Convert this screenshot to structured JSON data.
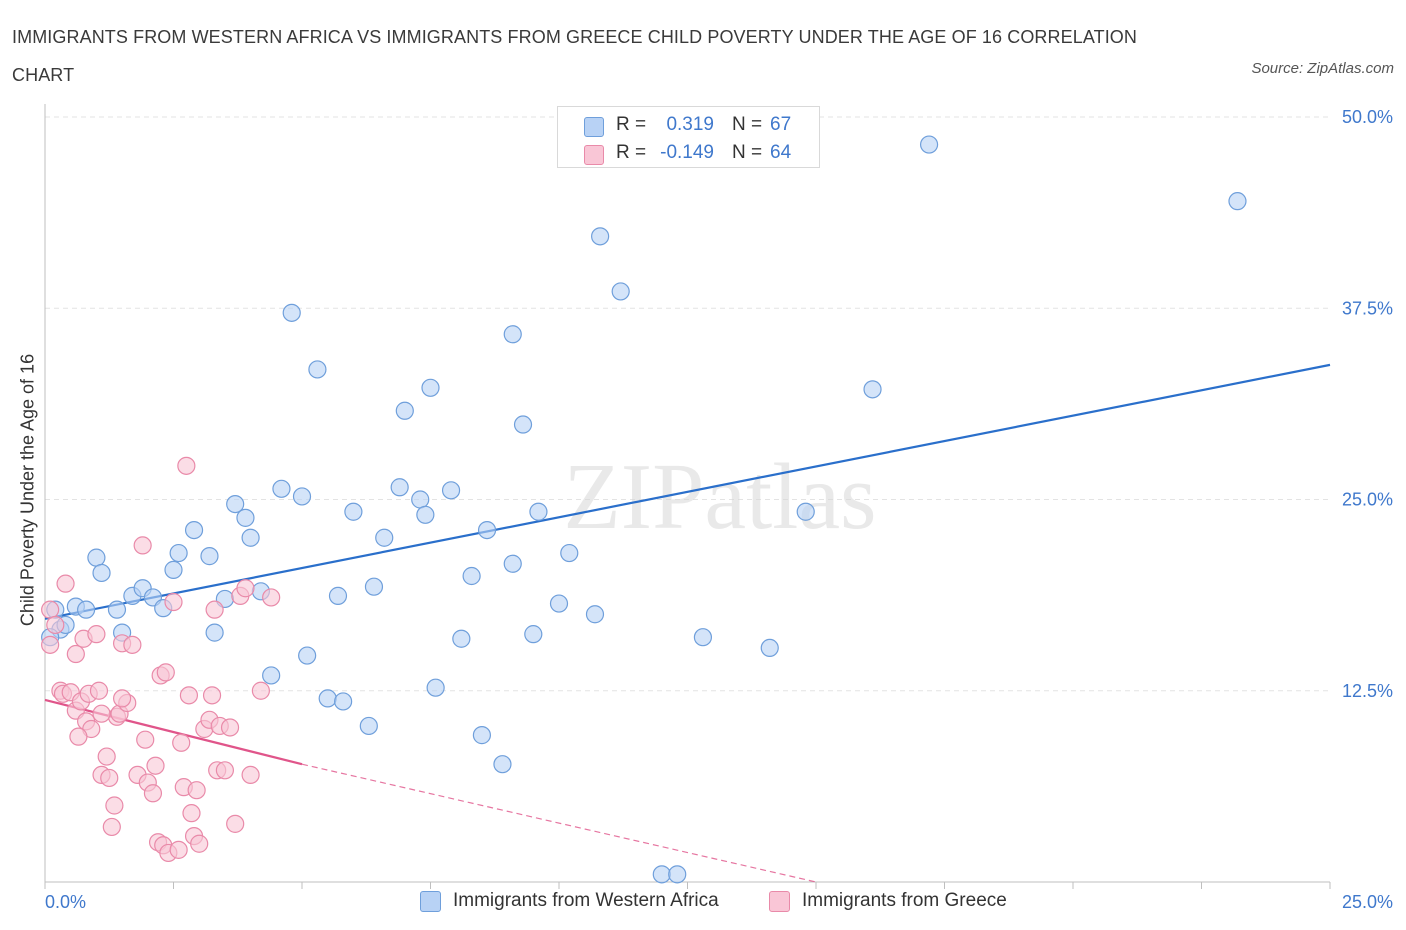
{
  "title": "IMMIGRANTS FROM WESTERN AFRICA VS IMMIGRANTS FROM GREECE CHILD POVERTY UNDER THE AGE OF 16 CORRELATION CHART",
  "source": "Source: ZipAtlas.com",
  "watermark": "ZIPatlas",
  "colors": {
    "blue_fill": "#b8d2f5",
    "blue_stroke": "#6f9fdb",
    "blue_line": "#2a6fcb",
    "pink_fill": "#f9c6d6",
    "pink_stroke": "#e98aa9",
    "pink_line": "#e0558a",
    "axis_text": "#3f78cc",
    "grid": "#e3e3e3"
  },
  "legend": {
    "r_label": "R =",
    "n_label": "N =",
    "series1": {
      "r": "0.319",
      "n": "67"
    },
    "series2": {
      "r": "-0.149",
      "n": "64"
    }
  },
  "chart_data": {
    "type": "scatter",
    "ylabel": "Child Poverty Under the Age of 16",
    "xlabel": "",
    "xlim": [
      0,
      25
    ],
    "ylim": [
      0,
      50
    ],
    "x_tick_labels": [
      "0.0%",
      "25.0%"
    ],
    "y_tick_labels": [
      "12.5%",
      "25.0%",
      "37.5%",
      "50.0%"
    ],
    "y_ticks": [
      12.5,
      25.0,
      37.5,
      50.0
    ],
    "grid": true,
    "legend_position": "top-center",
    "series": [
      {
        "name": "Immigrants from Western Africa",
        "color": "#b8d2f5",
        "trend": {
          "x": [
            0,
            25
          ],
          "y": [
            17.2,
            33.8
          ]
        },
        "points": [
          [
            0.2,
            17.8
          ],
          [
            0.3,
            16.5
          ],
          [
            0.4,
            16.8
          ],
          [
            0.6,
            18.0
          ],
          [
            0.8,
            17.8
          ],
          [
            1.0,
            21.2
          ],
          [
            1.1,
            20.2
          ],
          [
            1.4,
            17.8
          ],
          [
            1.5,
            16.3
          ],
          [
            1.7,
            18.7
          ],
          [
            1.9,
            19.2
          ],
          [
            2.1,
            18.6
          ],
          [
            2.3,
            17.9
          ],
          [
            2.5,
            20.4
          ],
          [
            2.6,
            21.5
          ],
          [
            2.9,
            23.0
          ],
          [
            3.2,
            21.3
          ],
          [
            3.3,
            16.3
          ],
          [
            3.5,
            18.5
          ],
          [
            3.7,
            24.7
          ],
          [
            3.9,
            23.8
          ],
          [
            4.0,
            22.5
          ],
          [
            4.2,
            19.0
          ],
          [
            4.4,
            13.5
          ],
          [
            4.6,
            25.7
          ],
          [
            4.8,
            37.2
          ],
          [
            5.0,
            25.2
          ],
          [
            5.1,
            14.8
          ],
          [
            5.3,
            33.5
          ],
          [
            5.5,
            12.0
          ],
          [
            5.7,
            18.7
          ],
          [
            5.8,
            11.8
          ],
          [
            6.0,
            24.2
          ],
          [
            6.3,
            10.2
          ],
          [
            6.4,
            19.3
          ],
          [
            6.6,
            22.5
          ],
          [
            6.9,
            25.8
          ],
          [
            7.0,
            30.8
          ],
          [
            7.3,
            25.0
          ],
          [
            7.4,
            24.0
          ],
          [
            7.5,
            32.3
          ],
          [
            7.6,
            12.7
          ],
          [
            7.9,
            25.6
          ],
          [
            8.1,
            15.9
          ],
          [
            8.3,
            20.0
          ],
          [
            8.5,
            9.6
          ],
          [
            8.6,
            23.0
          ],
          [
            8.9,
            7.7
          ],
          [
            9.1,
            20.8
          ],
          [
            9.1,
            35.8
          ],
          [
            9.3,
            29.9
          ],
          [
            9.5,
            16.2
          ],
          [
            9.6,
            24.2
          ],
          [
            10.0,
            18.2
          ],
          [
            10.2,
            21.5
          ],
          [
            10.7,
            17.5
          ],
          [
            10.8,
            42.2
          ],
          [
            11.2,
            38.6
          ],
          [
            12.0,
            0.5
          ],
          [
            12.3,
            0.5
          ],
          [
            12.8,
            16.0
          ],
          [
            14.1,
            15.3
          ],
          [
            14.8,
            24.2
          ],
          [
            16.1,
            32.2
          ],
          [
            17.2,
            48.2
          ],
          [
            23.2,
            44.5
          ],
          [
            0.1,
            16.0
          ]
        ]
      },
      {
        "name": "Immigrants from Greece",
        "color": "#f9c6d6",
        "trend": {
          "x": [
            0,
            5.0
          ],
          "y": [
            11.9,
            7.7
          ]
        },
        "trend_extension": {
          "x": [
            5.0,
            15.0
          ],
          "y": [
            7.7,
            0
          ]
        },
        "points": [
          [
            0.1,
            17.8
          ],
          [
            0.1,
            15.5
          ],
          [
            0.2,
            16.8
          ],
          [
            0.3,
            12.5
          ],
          [
            0.35,
            12.3
          ],
          [
            0.4,
            19.5
          ],
          [
            0.5,
            12.4
          ],
          [
            0.6,
            14.9
          ],
          [
            0.6,
            11.2
          ],
          [
            0.7,
            11.8
          ],
          [
            0.75,
            15.9
          ],
          [
            0.8,
            10.5
          ],
          [
            0.85,
            12.3
          ],
          [
            0.9,
            10.0
          ],
          [
            1.0,
            16.2
          ],
          [
            1.05,
            12.5
          ],
          [
            1.1,
            7.0
          ],
          [
            1.2,
            8.2
          ],
          [
            1.25,
            6.8
          ],
          [
            1.3,
            3.6
          ],
          [
            1.35,
            5.0
          ],
          [
            1.4,
            10.8
          ],
          [
            1.45,
            11.0
          ],
          [
            1.5,
            15.6
          ],
          [
            1.6,
            11.7
          ],
          [
            1.7,
            15.5
          ],
          [
            1.8,
            7.0
          ],
          [
            1.9,
            22.0
          ],
          [
            1.95,
            9.3
          ],
          [
            2.0,
            6.5
          ],
          [
            2.1,
            5.8
          ],
          [
            2.15,
            7.6
          ],
          [
            2.2,
            2.6
          ],
          [
            2.25,
            13.5
          ],
          [
            2.3,
            2.4
          ],
          [
            2.35,
            13.7
          ],
          [
            2.4,
            1.9
          ],
          [
            2.5,
            18.3
          ],
          [
            2.6,
            2.1
          ],
          [
            2.65,
            9.1
          ],
          [
            2.7,
            6.2
          ],
          [
            2.75,
            27.2
          ],
          [
            2.8,
            12.2
          ],
          [
            2.85,
            4.5
          ],
          [
            2.9,
            3.0
          ],
          [
            3.0,
            2.5
          ],
          [
            3.1,
            10.0
          ],
          [
            3.2,
            10.6
          ],
          [
            3.25,
            12.2
          ],
          [
            3.3,
            17.8
          ],
          [
            3.35,
            7.3
          ],
          [
            3.4,
            10.2
          ],
          [
            3.5,
            7.3
          ],
          [
            3.6,
            10.1
          ],
          [
            3.7,
            3.8
          ],
          [
            3.8,
            18.7
          ],
          [
            3.9,
            19.2
          ],
          [
            4.0,
            7.0
          ],
          [
            4.2,
            12.5
          ],
          [
            4.4,
            18.6
          ],
          [
            1.1,
            11.0
          ],
          [
            0.65,
            9.5
          ],
          [
            1.5,
            12.0
          ],
          [
            2.95,
            6.0
          ]
        ]
      }
    ]
  }
}
